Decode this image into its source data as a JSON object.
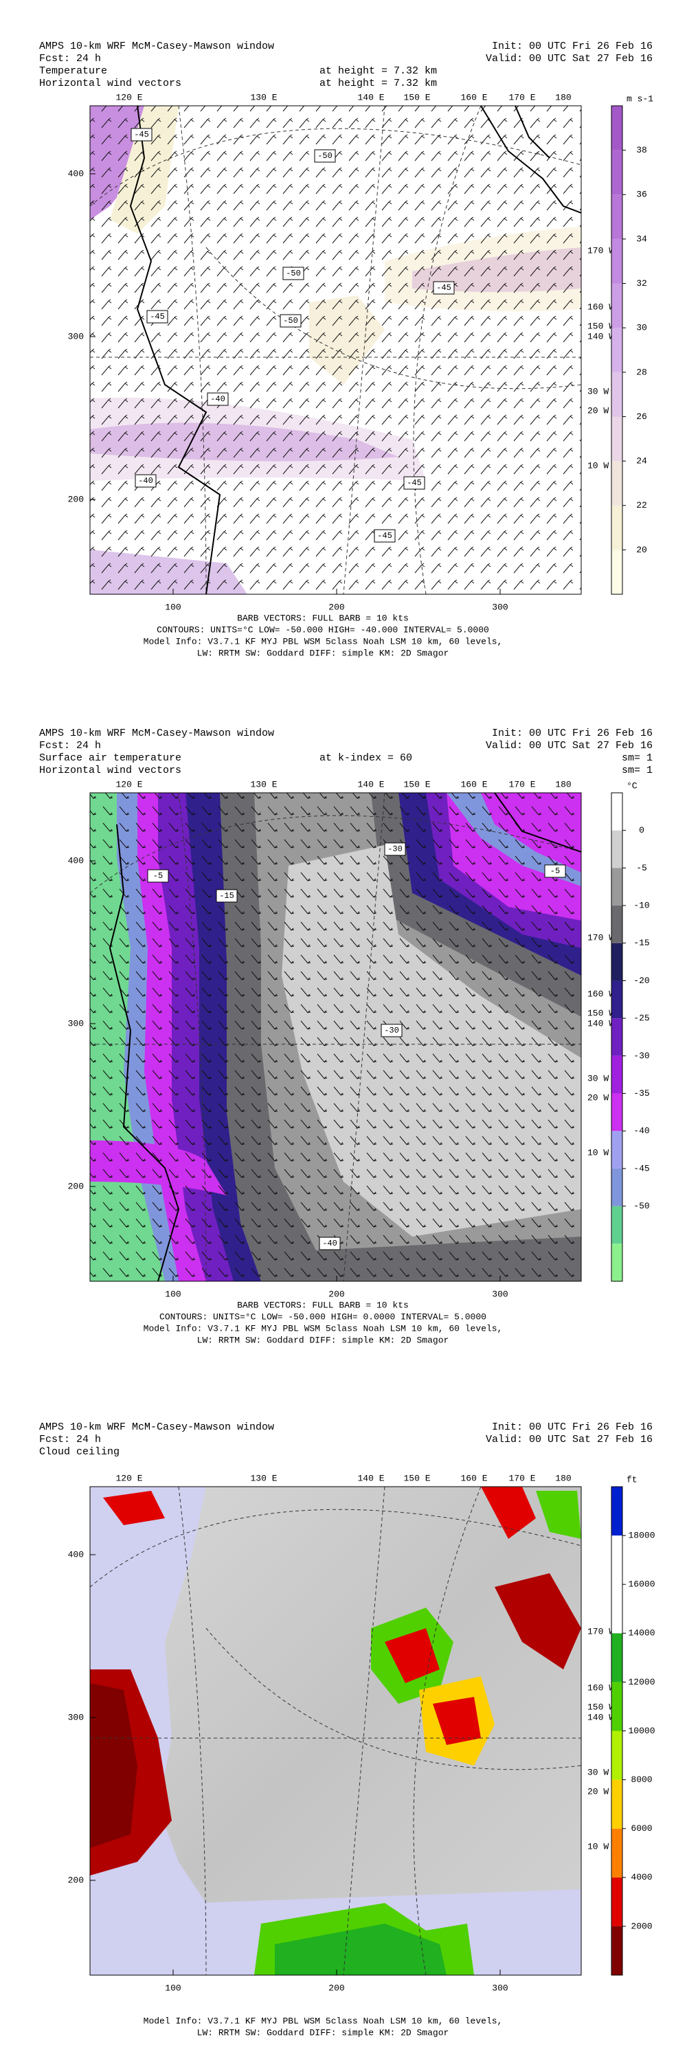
{
  "panels": [
    {
      "header_left": [
        "AMPS 10-km WRF McM-Casey-Mawson window",
        "Fcst:    24 h",
        "Temperature",
        "Horizontal wind vectors"
      ],
      "header_mid": [
        "at height =  7.32 km",
        "at height =  7.32 km"
      ],
      "header_right": [
        "Init: 00 UTC Fri 26 Feb 16",
        "Valid: 00 UTC Sat 27 Feb 16"
      ],
      "top_labels": [
        "120 E",
        "130 E",
        "140 E",
        "150 E",
        "160 E",
        "170 E",
        "180"
      ],
      "right_labels": [
        "170 W",
        "160 W",
        "150 W",
        "140 W",
        "30 W",
        "20 W",
        "10 W"
      ],
      "y_labels": [
        "400",
        "300",
        "200"
      ],
      "x_labels": [
        "100",
        "200",
        "300"
      ],
      "contour_labels": [
        "-45",
        "-50",
        "-50",
        "-50",
        "-45",
        "-45",
        "-40",
        "-45",
        "-45",
        "-40"
      ],
      "colorbar": {
        "unit": "m s-1",
        "ticks": [
          20,
          22,
          24,
          26,
          28,
          30,
          32,
          34,
          36,
          38
        ],
        "colors": [
          "#fbfbe6",
          "#f6f0d6",
          "#f0e4dc",
          "#ead6e6",
          "#e0c4ea",
          "#d6b2ea",
          "#cc9ee6",
          "#c28ae0",
          "#b876d8",
          "#ae66d0",
          "#a458c8"
        ]
      },
      "footer": [
        "BARB VECTORS:  FULL BARB = 10 kts",
        "CONTOURS:  UNITS=°C  LOW= -50.000     HIGH= -40.000    INTERVAL=   5.0000",
        "Model Info: V3.7.1    KF       MYJ PBL   WSM 5class  Noah LSM  10 km,   60 levels,",
        "LW: RRTM SW: Goddard DIFF: simple KM: 2D Smagor"
      ]
    },
    {
      "header_left": [
        "AMPS 10-km WRF McM-Casey-Mawson window",
        "Fcst:    24 h",
        "Surface air temperature",
        "Horizontal wind vectors"
      ],
      "header_mid": [
        "at k-index =  60"
      ],
      "header_right": [
        "Init: 00 UTC Fri 26 Feb 16",
        "Valid: 00 UTC Sat 27 Feb 16",
        "sm= 1",
        "sm= 1"
      ],
      "top_labels": [
        "120 E",
        "130 E",
        "140 E",
        "150 E",
        "160 E",
        "170 E",
        "180"
      ],
      "right_labels": [
        "170 W",
        "160 W",
        "150 W",
        "140 W",
        "30 W",
        "20 W",
        "10 W"
      ],
      "y_labels": [
        "400",
        "300",
        "200"
      ],
      "x_labels": [
        "100",
        "200",
        "300"
      ],
      "contour_labels": [
        "-5",
        "-30",
        "-5",
        "-30",
        "-15",
        "-40"
      ],
      "colorbar": {
        "unit": "°C",
        "ticks": [
          0,
          -5,
          -10,
          -15,
          -20,
          -25,
          -30,
          -35,
          -40,
          -45,
          -50
        ],
        "colors": [
          "#8cf08c",
          "#60d090",
          "#8096dc",
          "#a0a0f0",
          "#cc30f0",
          "#a020e0",
          "#7020c0",
          "#30208c",
          "#202060",
          "#6a6a6e",
          "#9a9a9a",
          "#d0d0d0",
          "#ffffff"
        ]
      },
      "footer": [
        "BARB VECTORS:  FULL BARB = 10 kts",
        "CONTOURS:  UNITS=°C  LOW= -50.000     HIGH= 0.0000     INTERVAL=   5.0000",
        "Model Info: V3.7.1    KF       MYJ PBL   WSM 5class  Noah LSM  10 km,   60 levels,",
        "LW: RRTM SW: Goddard DIFF: simple KM: 2D Smagor"
      ]
    },
    {
      "header_left": [
        "AMPS 10-km WRF McM-Casey-Mawson window",
        "Fcst:    24 h",
        "Cloud ceiling"
      ],
      "header_mid": [],
      "header_right": [
        "Init: 00 UTC Fri 26 Feb 16",
        "Valid: 00 UTC Sat 27 Feb 16"
      ],
      "top_labels": [
        "120 E",
        "130 E",
        "140 E",
        "150 E",
        "160 E",
        "170 E",
        "180"
      ],
      "right_labels": [
        "170 W",
        "160 W",
        "150 W",
        "140 W",
        "30 W",
        "20 W",
        "10 W"
      ],
      "y_labels": [
        "400",
        "300",
        "200"
      ],
      "x_labels": [
        "100",
        "200",
        "300"
      ],
      "contour_labels": [],
      "colorbar": {
        "unit": "ft",
        "ticks": [
          2000,
          4000,
          6000,
          8000,
          10000,
          12000,
          14000,
          16000,
          18000
        ],
        "colors": [
          "#800000",
          "#e00000",
          "#ff8000",
          "#ffd000",
          "#b0f000",
          "#50d000",
          "#20b020",
          "#ffffff",
          "#ffffff",
          "#0020d0"
        ]
      },
      "footer": [
        "Model Info: V3.7.1    KF       MYJ PBL   WSM 5class  Noah LSM  10 km,   60 levels,",
        "LW: RRTM SW: Goddard DIFF: simple KM: 2D Smagor"
      ]
    }
  ]
}
